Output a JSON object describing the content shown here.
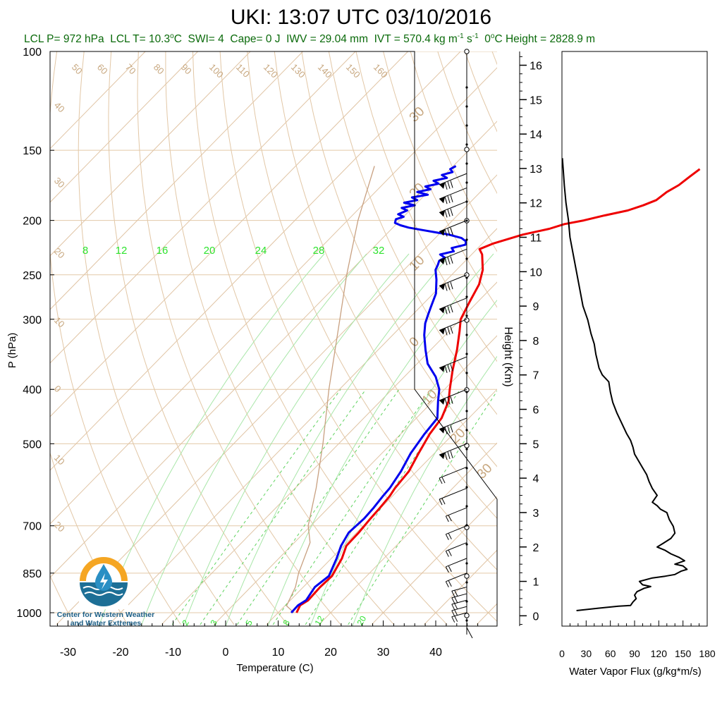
{
  "title": "UKI: 13:07 UTC 03/10/2016",
  "subtitle": {
    "lcl_p": "LCL P= 972 hPa",
    "lcl_t_prefix": "LCL T= 10.3",
    "lcl_t_unit": "C",
    "swi": "SWI= 4",
    "cape": "Cape= 0 J",
    "iwv": "IWV = 29.04 mm",
    "ivt_prefix": "IVT = 570.4 kg m",
    "ivt_exp1": "-1",
    "ivt_mid": " s",
    "ivt_exp2": "-1",
    "zero_height": "C Height = 2828.9 m",
    "zero_height_prefix": "0"
  },
  "logo": {
    "line1": "Center for Western Weather",
    "line2": "and Water Extremes"
  },
  "chart_data": [
    {
      "type": "skew-t",
      "xlabel": "Temperature (C)",
      "ylabel": "P (hPa)",
      "xlim": [
        -34,
        50
      ],
      "ylim": [
        1050,
        100
      ],
      "yscale": "log",
      "x_ticks": [
        -30,
        -20,
        -10,
        0,
        10,
        20,
        30,
        40
      ],
      "pressure_levels": [
        100,
        150,
        200,
        250,
        300,
        400,
        500,
        700,
        850,
        1000
      ],
      "dry_adiabat_labels": [
        "50",
        "60",
        "70",
        "80",
        "90",
        "100",
        "110",
        "120",
        "130",
        "140",
        "150",
        "160"
      ],
      "isotherm_labels": [
        "40",
        "30",
        "20",
        "10",
        "0",
        "10",
        "20"
      ],
      "right_isotherm_labels": [
        "30",
        "20",
        "10",
        "0",
        "10",
        "20",
        "30"
      ],
      "mixing_ratio_labels_top": [
        "8",
        "12",
        "16",
        "20",
        "24",
        "28",
        "32"
      ],
      "mixing_ratio_labels_bottom": [
        "2",
        "3",
        "5",
        "8",
        "12",
        "20"
      ],
      "temperature": {
        "name": "Temperature",
        "color": "#ee0000",
        "points": [
          [
            13.5,
            1000
          ],
          [
            12.8,
            970
          ],
          [
            13.4,
            950
          ],
          [
            13.2,
            900
          ],
          [
            13.4,
            860
          ],
          [
            12.0,
            800
          ],
          [
            10.5,
            760
          ],
          [
            10.4,
            720
          ],
          [
            10.0,
            680
          ],
          [
            9.8,
            650
          ],
          [
            9.5,
            620
          ],
          [
            9.0,
            600
          ],
          [
            8.5,
            560
          ],
          [
            7.0,
            520
          ],
          [
            5.5,
            480
          ],
          [
            4.8,
            450
          ],
          [
            3.0,
            420
          ],
          [
            1.0,
            400
          ],
          [
            -2.0,
            370
          ],
          [
            -5.0,
            340
          ],
          [
            -8.0,
            315
          ],
          [
            -10.0,
            300
          ],
          [
            -11.5,
            280
          ],
          [
            -13.0,
            260
          ],
          [
            -15.0,
            245
          ],
          [
            -18.0,
            230
          ],
          [
            -19.5,
            225
          ],
          [
            -18.0,
            220
          ],
          [
            -14.0,
            212
          ],
          [
            -10.0,
            207
          ],
          [
            -8.0,
            203
          ],
          [
            -5.0,
            200
          ],
          [
            -2.0,
            196
          ],
          [
            1.5,
            192
          ],
          [
            3.5,
            188
          ],
          [
            5.0,
            184
          ],
          [
            5.5,
            178
          ],
          [
            6.5,
            173
          ],
          [
            7.0,
            167
          ],
          [
            7.5,
            162
          ]
        ]
      },
      "dewpoint": {
        "name": "Dewpoint",
        "color": "#0000ee",
        "points": [
          [
            12.5,
            1000
          ],
          [
            12.4,
            970
          ],
          [
            13.0,
            950
          ],
          [
            12.2,
            900
          ],
          [
            12.8,
            860
          ],
          [
            11.0,
            800
          ],
          [
            9.5,
            760
          ],
          [
            8.5,
            720
          ],
          [
            8.8,
            680
          ],
          [
            8.6,
            650
          ],
          [
            8.2,
            620
          ],
          [
            8.0,
            600
          ],
          [
            7.0,
            560
          ],
          [
            5.5,
            520
          ],
          [
            4.5,
            480
          ],
          [
            4.0,
            450
          ],
          [
            1.0,
            420
          ],
          [
            -1.0,
            400
          ],
          [
            -4.0,
            380
          ],
          [
            -8.0,
            360
          ],
          [
            -11.0,
            340
          ],
          [
            -14.0,
            320
          ],
          [
            -16.0,
            305
          ],
          [
            -17.0,
            295
          ],
          [
            -18.0,
            285
          ],
          [
            -19.5,
            270
          ],
          [
            -22.0,
            255
          ],
          [
            -24.0,
            245
          ],
          [
            -24.5,
            240
          ],
          [
            -25.0,
            236
          ],
          [
            -24.5,
            233
          ],
          [
            -26.0,
            230
          ],
          [
            -24.0,
            227
          ],
          [
            -25.0,
            224
          ],
          [
            -23.0,
            221
          ],
          [
            -23.5,
            218
          ],
          [
            -25.0,
            215
          ],
          [
            -28.0,
            212
          ],
          [
            -31.0,
            210
          ],
          [
            -34.0,
            208
          ],
          [
            -37.0,
            206
          ],
          [
            -39.0,
            204
          ],
          [
            -40.5,
            202
          ],
          [
            -41.0,
            199
          ],
          [
            -40.0,
            197
          ],
          [
            -41.5,
            195
          ],
          [
            -40.5,
            192
          ],
          [
            -42.0,
            190
          ],
          [
            -40.0,
            188
          ],
          [
            -42.5,
            186
          ],
          [
            -40.5,
            184
          ],
          [
            -42.0,
            182
          ],
          [
            -39.5,
            180
          ],
          [
            -42.0,
            178
          ],
          [
            -40.0,
            176
          ],
          [
            -41.5,
            174
          ],
          [
            -39.5,
            172
          ],
          [
            -41.0,
            170
          ],
          [
            -39.0,
            168
          ],
          [
            -40.5,
            166
          ],
          [
            -39.0,
            164
          ],
          [
            -40.0,
            162
          ],
          [
            -39.5,
            160
          ]
        ]
      },
      "parcel": {
        "name": "Parcel",
        "color": "#c8a080",
        "points": [
          [
            13.0,
            1000
          ],
          [
            10.3,
            972
          ],
          [
            8.5,
            900
          ],
          [
            6.5,
            850
          ],
          [
            3.0,
            750
          ],
          [
            -0.5,
            700
          ],
          [
            -6.0,
            600
          ],
          [
            -13.0,
            500
          ],
          [
            -22.0,
            400
          ],
          [
            -33.0,
            300
          ],
          [
            -40.0,
            250
          ],
          [
            -48.0,
            200
          ],
          [
            -55.0,
            160
          ]
        ]
      },
      "wind_barbs_hpa": [
        1000,
        975,
        950,
        925,
        900,
        850,
        800,
        750,
        700,
        650,
        600,
        550,
        500,
        450,
        400,
        350,
        300,
        275,
        250,
        225,
        200,
        185,
        175,
        165
      ]
    },
    {
      "type": "line",
      "xlabel": "Water Vapor Flux (g/kg*m/s)",
      "ylabel": "Height (Km)",
      "xlim": [
        0,
        180
      ],
      "ylim": [
        -0.3,
        16.4
      ],
      "x_ticks": [
        0,
        30,
        60,
        90,
        120,
        150,
        180
      ],
      "y_ticks": [
        0,
        1,
        2,
        3,
        4,
        5,
        6,
        7,
        8,
        9,
        10,
        11,
        12,
        13,
        14,
        15,
        16
      ],
      "series": [
        {
          "color": "#000000",
          "points": [
            [
              18,
              0.15
            ],
            [
              45,
              0.22
            ],
            [
              70,
              0.28
            ],
            [
              85,
              0.3
            ],
            [
              88,
              0.4
            ],
            [
              92,
              0.5
            ],
            [
              90,
              0.6
            ],
            [
              93,
              0.7
            ],
            [
              102,
              0.8
            ],
            [
              110,
              0.85
            ],
            [
              100,
              0.9
            ],
            [
              96,
              1.0
            ],
            [
              112,
              1.1
            ],
            [
              128,
              1.15
            ],
            [
              140,
              1.2
            ],
            [
              148,
              1.3
            ],
            [
              155,
              1.35
            ],
            [
              150,
              1.45
            ],
            [
              140,
              1.5
            ],
            [
              152,
              1.6
            ],
            [
              145,
              1.7
            ],
            [
              135,
              1.8
            ],
            [
              128,
              1.9
            ],
            [
              118,
              2.0
            ],
            [
              125,
              2.1
            ],
            [
              135,
              2.25
            ],
            [
              140,
              2.4
            ],
            [
              138,
              2.6
            ],
            [
              133,
              2.8
            ],
            [
              130,
              3.0
            ],
            [
              122,
              3.1
            ],
            [
              118,
              3.2
            ],
            [
              112,
              3.3
            ],
            [
              118,
              3.5
            ],
            [
              112,
              3.7
            ],
            [
              108,
              3.9
            ],
            [
              105,
              4.1
            ],
            [
              100,
              4.3
            ],
            [
              95,
              4.5
            ],
            [
              90,
              4.7
            ],
            [
              88,
              4.9
            ],
            [
              85,
              5.1
            ],
            [
              80,
              5.3
            ],
            [
              76,
              5.5
            ],
            [
              72,
              5.7
            ],
            [
              68,
              5.9
            ],
            [
              63,
              6.2
            ],
            [
              60,
              6.5
            ],
            [
              58,
              6.8
            ],
            [
              50,
              7.0
            ],
            [
              46,
              7.2
            ],
            [
              44,
              7.4
            ],
            [
              42,
              7.6
            ],
            [
              40,
              7.9
            ],
            [
              36,
              8.2
            ],
            [
              32,
              8.6
            ],
            [
              26,
              9.0
            ],
            [
              22,
              9.5
            ],
            [
              18,
              10.0
            ],
            [
              14,
              10.5
            ],
            [
              10,
              11.0
            ],
            [
              8,
              11.5
            ],
            [
              5,
              12.0
            ],
            [
              3,
              12.5
            ],
            [
              1.5,
              13.0
            ],
            [
              0.5,
              13.3
            ]
          ]
        }
      ]
    }
  ]
}
